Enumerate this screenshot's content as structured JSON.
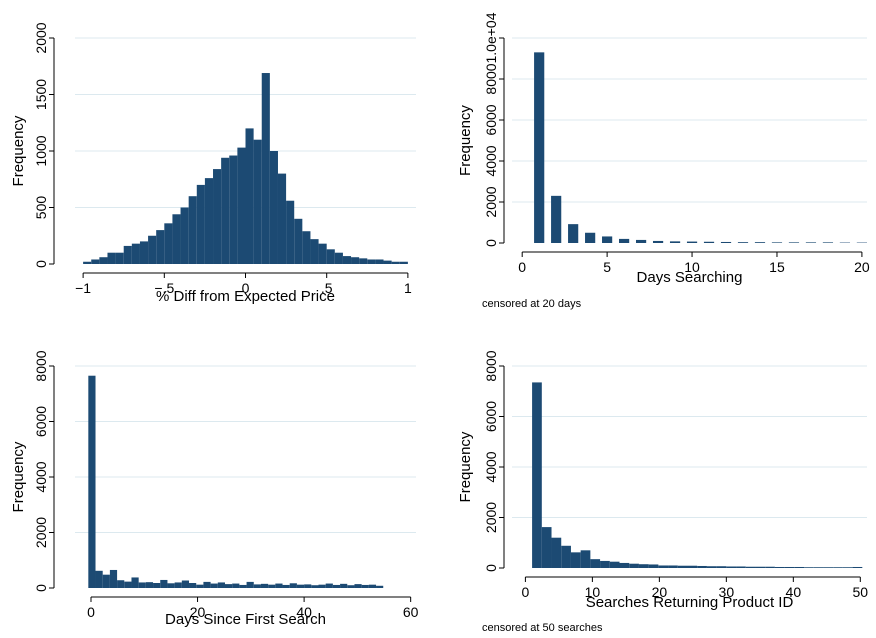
{
  "colors": {
    "bar": "#1c4a73",
    "grid": "#dce9ef",
    "axis": "#000000",
    "background": "#ffffff"
  },
  "chart_data": [
    {
      "type": "bar",
      "title": "",
      "xlabel": "% Diff from Expected Price",
      "ylabel": "Frequency",
      "note": "",
      "xlim": [
        -1.05,
        1.05
      ],
      "ylim": [
        0,
        2000
      ],
      "xticks": [
        -1,
        -0.5,
        0,
        0.5,
        1
      ],
      "xtick_labels": [
        "−1",
        "−.5",
        "0",
        ".5",
        "1"
      ],
      "yticks": [
        0,
        500,
        1000,
        1500,
        2000
      ],
      "ytick_labels": [
        "0",
        "500",
        "1000",
        "1500",
        "2000"
      ],
      "grid": true,
      "bins": {
        "start": -1.0,
        "width": 0.05,
        "values": [
          20,
          40,
          60,
          100,
          100,
          160,
          180,
          200,
          250,
          300,
          360,
          440,
          500,
          600,
          700,
          760,
          840,
          940,
          960,
          1030,
          1200,
          1100,
          1690,
          1000,
          800,
          560,
          400,
          290,
          220,
          180,
          130,
          100,
          70,
          60,
          50,
          40,
          40,
          30,
          20,
          20
        ]
      }
    },
    {
      "type": "bar",
      "title": "",
      "xlabel": "Days Searching",
      "ylabel": "Frequency",
      "note": "censored at 20 days",
      "xlim": [
        -0.6,
        20.3
      ],
      "ylim": [
        0,
        10000
      ],
      "xticks": [
        0,
        5,
        10,
        15,
        20
      ],
      "xtick_labels": [
        "0",
        "5",
        "10",
        "15",
        "20"
      ],
      "yticks": [
        0,
        2000,
        4000,
        6000,
        8000,
        10000
      ],
      "ytick_labels": [
        "0",
        "2000",
        "4000",
        "6000",
        "8000",
        "1.0e+04"
      ],
      "grid": true,
      "bins": {
        "start": 1,
        "width": 0.6,
        "centers": [
          1,
          2,
          3,
          4,
          5,
          6,
          7,
          8,
          9,
          10,
          11,
          12,
          13,
          14,
          15,
          16,
          17,
          18,
          19,
          20
        ],
        "values": [
          9300,
          2300,
          920,
          500,
          320,
          200,
          150,
          100,
          80,
          70,
          60,
          50,
          40,
          40,
          30,
          30,
          30,
          30,
          20,
          20
        ]
      }
    },
    {
      "type": "bar",
      "title": "",
      "xlabel": "Days Since First Search",
      "ylabel": "Frequency",
      "note": "",
      "xlim": [
        -3,
        61
      ],
      "ylim": [
        0,
        8000
      ],
      "xticks": [
        0,
        20,
        40,
        60
      ],
      "xtick_labels": [
        "0",
        "20",
        "40",
        "60"
      ],
      "yticks": [
        0,
        2000,
        4000,
        6000,
        8000
      ],
      "ytick_labels": [
        "0",
        "2000",
        "4000",
        "6000",
        "8000"
      ],
      "grid": true,
      "bins": {
        "start": -0.5,
        "width": 1.35,
        "values": [
          7650,
          620,
          480,
          650,
          280,
          230,
          380,
          200,
          210,
          180,
          290,
          170,
          200,
          270,
          180,
          120,
          220,
          160,
          200,
          140,
          160,
          110,
          220,
          130,
          150,
          120,
          160,
          110,
          170,
          120,
          130,
          100,
          120,
          160,
          110,
          150,
          100,
          140,
          110,
          120,
          80
        ]
      }
    },
    {
      "type": "bar",
      "title": "",
      "xlabel": "Searches Returning Product ID",
      "ylabel": "Frequency",
      "note": "censored at 50 searches",
      "xlim": [
        -2,
        51
      ],
      "ylim": [
        0,
        8000
      ],
      "xticks": [
        0,
        10,
        20,
        30,
        40,
        50
      ],
      "xtick_labels": [
        "0",
        "10",
        "20",
        "30",
        "40",
        "50"
      ],
      "yticks": [
        0,
        2000,
        4000,
        6000,
        8000
      ],
      "ytick_labels": [
        "0",
        "2000",
        "4000",
        "6000",
        "8000"
      ],
      "grid": true,
      "bins": {
        "start": 1,
        "width": 1.45,
        "values": [
          7350,
          1620,
          1200,
          880,
          620,
          700,
          350,
          280,
          250,
          200,
          170,
          150,
          140,
          100,
          100,
          90,
          90,
          80,
          70,
          70,
          60,
          60,
          50,
          50,
          50,
          40,
          40,
          40,
          30,
          30,
          30,
          30,
          30,
          40
        ]
      }
    }
  ]
}
